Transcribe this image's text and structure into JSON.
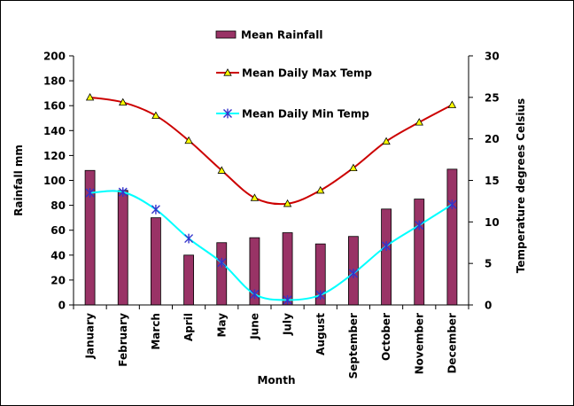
{
  "chart_data": {
    "type": "bar",
    "title": "",
    "xlabel": "Month",
    "ylabel_left": "Rainfall mm",
    "ylabel_right": "Temperature degrees Celsius",
    "categories": [
      "January",
      "February",
      "March",
      "April",
      "May",
      "June",
      "July",
      "August",
      "September",
      "October",
      "November",
      "December"
    ],
    "y_left": {
      "min": 0,
      "max": 200,
      "step": 20,
      "ticks": [
        "0",
        "20",
        "40",
        "60",
        "80",
        "100",
        "120",
        "140",
        "160",
        "180",
        "200"
      ]
    },
    "y_right": {
      "min": 0,
      "max": 30,
      "step": 5,
      "ticks": [
        "0",
        "5",
        "10",
        "15",
        "20",
        "25",
        "30"
      ]
    },
    "grid": false,
    "legend_position": "top",
    "series": [
      {
        "name": "Mean Rainfall",
        "kind": "bar",
        "axis": "left",
        "color": "#993366",
        "values": [
          108,
          92,
          70,
          40,
          50,
          54,
          58,
          49,
          55,
          77,
          85,
          109
        ]
      },
      {
        "name": "Mean Daily Max Temp",
        "kind": "line",
        "axis": "right",
        "color": "#cc0000",
        "marker": "triangle",
        "marker_color": "#ffff00",
        "values": [
          25.0,
          24.4,
          22.8,
          19.8,
          16.2,
          12.9,
          12.2,
          13.8,
          16.5,
          19.7,
          22.0,
          24.1
        ]
      },
      {
        "name": "Mean Daily Min Temp",
        "kind": "line",
        "axis": "right",
        "color": "#00ffff",
        "marker": "asterisk",
        "marker_color": "#3333cc",
        "values": [
          13.5,
          13.6,
          11.5,
          8.0,
          5.1,
          1.3,
          0.6,
          1.2,
          3.8,
          7.1,
          9.6,
          12.1
        ]
      }
    ]
  }
}
